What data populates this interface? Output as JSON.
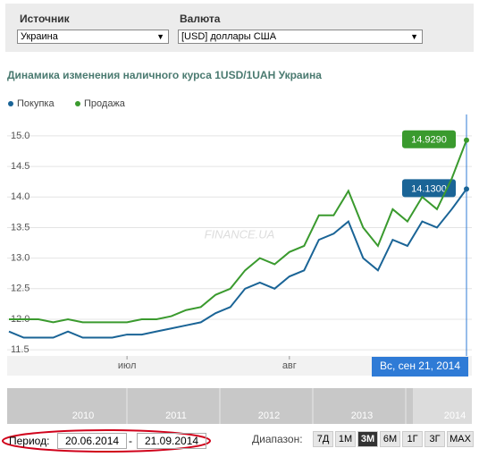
{
  "filters": {
    "source_label": "Источник",
    "source_value": "Украина",
    "currency_label": "Валюта",
    "currency_value": "[USD] доллары США"
  },
  "chart_data": {
    "type": "line",
    "title": "Динамика изменения наличного курса 1USD/1UAH Украина",
    "categories": [
      null,
      null,
      null,
      null,
      null,
      null,
      null,
      null,
      "июл",
      null,
      null,
      null,
      null,
      null,
      null,
      null,
      null,
      null,
      null,
      "авг",
      null,
      null,
      null,
      null,
      null,
      null,
      null,
      null,
      null,
      null,
      null,
      null
    ],
    "series": [
      {
        "name": "Покупка",
        "color": "#1a6496",
        "values": [
          11.8,
          11.7,
          11.7,
          11.7,
          11.8,
          11.7,
          11.7,
          11.7,
          11.75,
          11.75,
          11.8,
          11.85,
          11.9,
          11.95,
          12.1,
          12.2,
          12.5,
          12.6,
          12.5,
          12.7,
          12.8,
          13.3,
          13.4,
          13.6,
          13.0,
          12.8,
          13.3,
          13.2,
          13.6,
          13.5,
          13.8,
          14.13
        ],
        "value_labels": [
          null,
          null,
          null,
          null,
          null,
          null,
          null,
          null,
          null,
          null,
          null,
          null,
          null,
          null,
          null,
          null,
          null,
          null,
          null,
          null,
          null,
          null,
          null,
          null,
          null,
          null,
          null,
          null,
          null,
          null,
          null,
          "14.1300"
        ]
      },
      {
        "name": "Продажа",
        "color": "#3a9a2e",
        "values": [
          12.0,
          12.0,
          12.0,
          11.95,
          12.0,
          11.95,
          11.95,
          11.95,
          11.95,
          12.0,
          12.0,
          12.05,
          12.15,
          12.2,
          12.4,
          12.5,
          12.8,
          13.0,
          12.9,
          13.1,
          13.2,
          13.7,
          13.7,
          14.1,
          13.5,
          13.2,
          13.8,
          13.6,
          14.0,
          13.8,
          14.3,
          14.929
        ],
        "value_labels": [
          null,
          null,
          null,
          null,
          null,
          null,
          null,
          null,
          null,
          null,
          null,
          null,
          null,
          null,
          null,
          null,
          null,
          null,
          null,
          null,
          null,
          null,
          null,
          null,
          null,
          null,
          null,
          null,
          null,
          null,
          null,
          "14.9290"
        ]
      }
    ],
    "ylim": [
      11.4,
      15.35
    ],
    "yticks": [
      {
        "value": 11.5,
        "label": "11.5"
      },
      {
        "value": 12,
        "label": "12.0"
      },
      {
        "value": 12.5,
        "label": "12.5"
      },
      {
        "value": 13,
        "label": "13.0"
      },
      {
        "value": 13.5,
        "label": "13.5"
      },
      {
        "value": 14,
        "label": "14.0"
      },
      {
        "value": 14.5,
        "label": "14.5"
      },
      {
        "value": 15,
        "label": "15.0"
      }
    ],
    "grid": true,
    "legend": "top-left",
    "watermark": "FINANCE.UA",
    "tooltip": "Вс, сен 21, 2014"
  },
  "navigator": {
    "labels": [
      "2010",
      "2011",
      "2012",
      "2013",
      "2014"
    ]
  },
  "period": {
    "label": "Период:",
    "from": "20.06.2014",
    "separator": "-",
    "to": "21.09.2014"
  },
  "range": {
    "label": "Диапазон:",
    "buttons": [
      "7Д",
      "1М",
      "3М",
      "6М",
      "1Г",
      "3Г",
      "MAX"
    ],
    "active": 2
  }
}
